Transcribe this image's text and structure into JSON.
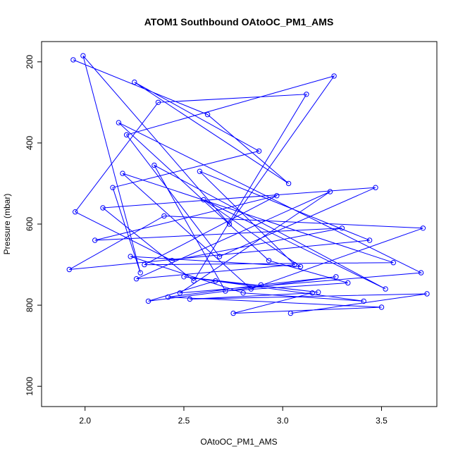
{
  "chart_data": {
    "type": "line",
    "title": "ATOM1 Southbound OAtoOC_PM1_AMS",
    "xlabel": "OAtoOC_PM1_AMS",
    "ylabel": "Pressure (mbar)",
    "xlim": [
      1.78,
      3.78
    ],
    "ylim": [
      1050,
      150
    ],
    "y_inverted": true,
    "x_ticks": [
      2.0,
      2.5,
      3.0,
      3.5
    ],
    "x_tick_labels": [
      "2.0",
      "2.5",
      "3.0",
      "3.5"
    ],
    "y_ticks": [
      200,
      400,
      600,
      800,
      1000
    ],
    "y_tick_labels": [
      "200",
      "400",
      "600",
      "800",
      "1000"
    ],
    "grid": false,
    "legend": "none",
    "colors": {
      "series": "#0000ff",
      "axes": "#000000",
      "background": "#ffffff"
    },
    "series": [
      {
        "x": [
          1.94,
          2.62,
          3.03,
          2.25,
          2.88,
          2.14,
          2.28,
          1.99,
          2.73,
          3.26,
          2.21,
          2.68,
          3.47,
          2.09,
          2.55,
          3.12,
          2.37,
          1.95,
          2.44,
          3.3,
          2.05,
          2.97,
          2.3,
          3.56,
          2.19,
          2.84,
          3.71,
          2.4,
          1.92,
          3.44,
          2.58,
          3.06,
          2.26,
          3.24,
          2.48,
          3.7,
          2.17,
          2.93,
          3.33,
          2.71,
          2.35,
          3.52,
          2.6,
          3.09,
          2.23,
          2.8,
          3.41,
          2.5,
          3.18,
          2.66,
          2.32,
          3.27,
          2.89,
          2.42,
          3.5,
          2.75,
          3.15,
          2.53,
          3.73,
          3.04
        ],
        "y": [
          195,
          330,
          500,
          250,
          420,
          510,
          720,
          185,
          600,
          235,
          380,
          680,
          510,
          560,
          740,
          280,
          300,
          570,
          690,
          610,
          640,
          530,
          700,
          695,
          475,
          760,
          610,
          580,
          712,
          640,
          470,
          700,
          735,
          520,
          770,
          720,
          350,
          690,
          745,
          765,
          455,
          760,
          540,
          705,
          680,
          770,
          790,
          730,
          768,
          740,
          790,
          730,
          750,
          780,
          805,
          820,
          770,
          785,
          772,
          820
        ]
      }
    ]
  }
}
